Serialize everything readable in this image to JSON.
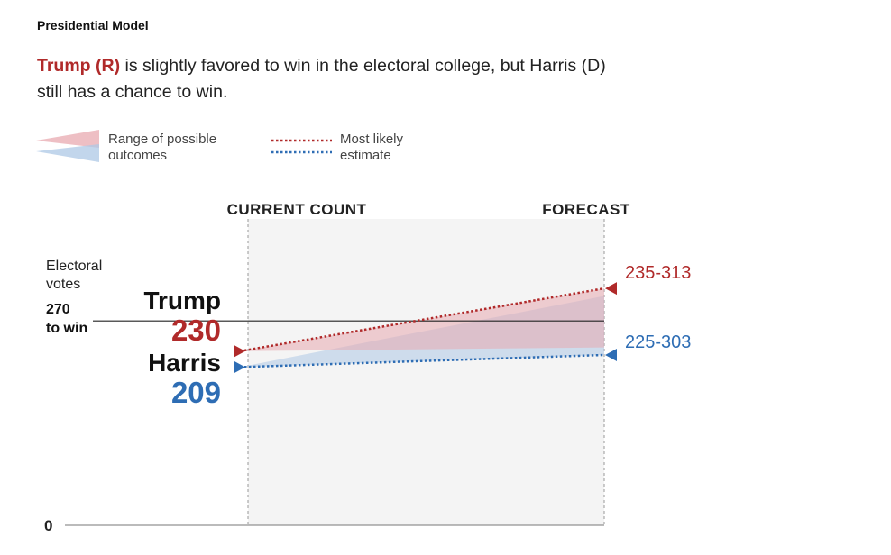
{
  "kicker": "Presidential Model",
  "headline": {
    "lead": "Trump (R)",
    "rest_line1": " is slightly favored to win in the electoral college, but Harris (D)",
    "rest_line2": "still has a chance to win."
  },
  "legend": {
    "range_line1": "Range of possible",
    "range_line2": "outcomes",
    "estimate_line1": "Most likely",
    "estimate_line2": "estimate"
  },
  "colors": {
    "republican": "#b02a2a",
    "democrat": "#2e6db4",
    "panel": "#f4f4f4",
    "r_range": "#e8a9b0",
    "d_range": "#aec8e6"
  },
  "chart_data": {
    "type": "line",
    "title": "Presidential Model",
    "columns": [
      "CURRENT COUNT",
      "FORECAST"
    ],
    "y_axis_label_line1": "Electoral",
    "y_axis_label_line2": "votes",
    "threshold": {
      "value": 270,
      "label_line1": "270",
      "label_line2": "to win"
    },
    "y_zero_label": "0",
    "ylim": [
      0,
      320
    ],
    "series": [
      {
        "name": "Trump",
        "party": "R",
        "current": 230,
        "current_label": "230",
        "forecast_low": 235,
        "forecast_high": 313,
        "forecast_label": "235-313",
        "most_likely": 313
      },
      {
        "name": "Harris",
        "party": "D",
        "current": 209,
        "current_label": "209",
        "forecast_low": 225,
        "forecast_high": 303,
        "forecast_label": "225-303",
        "most_likely": 225
      }
    ]
  }
}
